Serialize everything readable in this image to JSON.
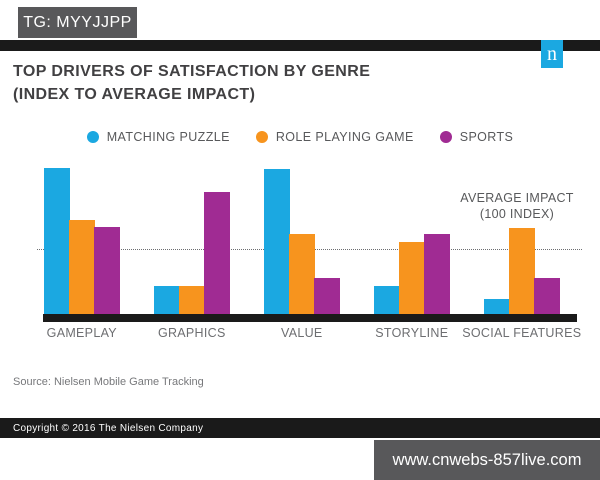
{
  "overlay": {
    "tg_label": "TG: MYYJJPP",
    "watermark": "www.cnwebs-857live.com"
  },
  "slide": {
    "title_line1": "TOP DRIVERS OF SATISFACTION BY GENRE",
    "title_line2": "(INDEX TO AVERAGE IMPACT)",
    "logo_letter": "n",
    "annotation_line1": "AVERAGE IMPACT",
    "annotation_line2": "(100 INDEX)",
    "source": "Source: Nielsen Mobile Game Tracking",
    "copyright": "Copyright © 2016 The Nielsen Company"
  },
  "colors": {
    "matching_puzzle": "#1BA8E1",
    "role_playing_game": "#F7941E",
    "sports": "#A02B93",
    "logo_bg": "#1BA8E1",
    "rule_black": "#1A1A1A",
    "overlay_gray": "#58585A"
  },
  "chart_data": {
    "type": "bar",
    "title": "TOP DRIVERS OF SATISFACTION BY GENRE (INDEX TO AVERAGE IMPACT)",
    "categories": [
      "GAMEPLAY",
      "GRAPHICS",
      "VALUE",
      "STORYLINE",
      "SOCIAL FEATURES"
    ],
    "series": [
      {
        "name": "MATCHING PUZZLE",
        "color": "#1BA8E1",
        "values": [
          225,
          43,
          223,
          43,
          23
        ]
      },
      {
        "name": "ROLE PLAYING GAME",
        "color": "#F7941E",
        "values": [
          145,
          43,
          123,
          111,
          132
        ]
      },
      {
        "name": "SPORTS",
        "color": "#A02B93",
        "values": [
          134,
          188,
          55,
          123,
          55
        ]
      }
    ],
    "reference_line": {
      "value": 100,
      "label": "AVERAGE IMPACT (100 INDEX)"
    },
    "xlabel": "",
    "ylabel": "",
    "legend_position": "top",
    "grid": false
  }
}
